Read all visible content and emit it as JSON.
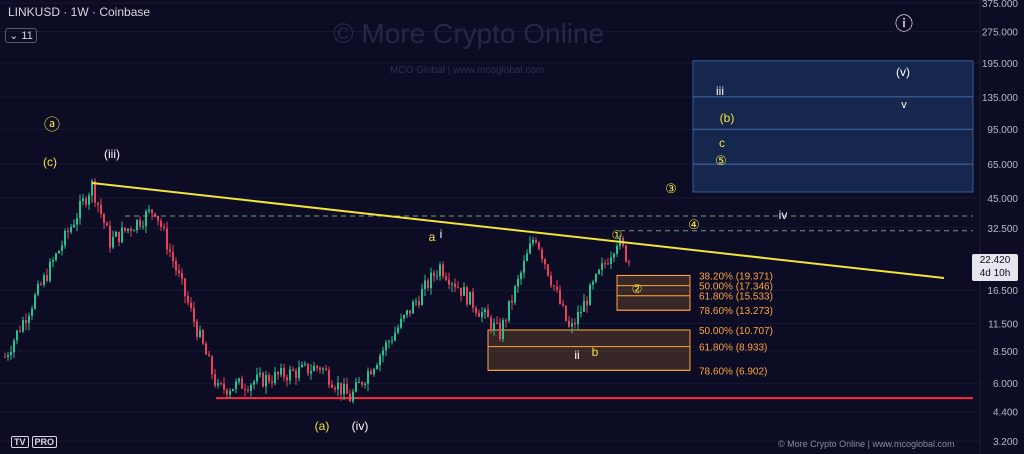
{
  "header": {
    "title": "LINKUSD · 1W · Coinbase",
    "interval_badge": "11"
  },
  "watermark": {
    "main": "© More Crypto Online",
    "sub": "MCO Global   |   www.mcoglobal.com"
  },
  "footer": {
    "credit": "© More Crypto Online  |  www.mcoglobal.com",
    "logo": "TV",
    "logo_badge": "PRO"
  },
  "price_label": {
    "value": "22.420",
    "countdown": "4d 10h"
  },
  "colors": {
    "background": "#0c0c24",
    "up": "#27c08f",
    "down": "#e8415a",
    "trendline": "#f2e43c",
    "support": "#ff2a3c",
    "fib": "#ffa43a",
    "target_zone": "#18305a"
  },
  "chart_data": {
    "type": "candlestick",
    "symbol": "LINKUSD",
    "timeframe": "1W",
    "exchange": "Coinbase",
    "y_scale": "log",
    "y_ticks": [
      "375.000",
      "275.000",
      "195.000",
      "135.000",
      "95.000",
      "65.000",
      "45.000",
      "32.500",
      "22.420",
      "16.500",
      "11.500",
      "8.500",
      "6.000",
      "4.400",
      "3.200"
    ],
    "last_price": 22.42,
    "price_path": [
      {
        "label": "(c) high",
        "price": 52
      },
      {
        "label": "(a) low",
        "price": 5.3
      },
      {
        "label": "(iv) low",
        "price": 5.1
      },
      {
        "label": "a / i high",
        "price": 21.5
      },
      {
        "label": "ii low",
        "price": 10.3
      },
      {
        "label": "peak",
        "price": 30.5
      },
      {
        "label": "b low",
        "price": 10.5
      },
      {
        "label": "(1) high",
        "price": 28.7
      },
      {
        "label": "current",
        "price": 22.42
      }
    ],
    "fib_levels_upper": [
      {
        "label": "38.20% (19.371)",
        "price": 19.371
      },
      {
        "label": "50.00% (17.346)",
        "price": 17.346
      },
      {
        "label": "61.80% (15.533)",
        "price": 15.533
      },
      {
        "label": "78.60% (13.273)",
        "price": 13.273
      }
    ],
    "fib_levels_lower": [
      {
        "label": "50.00% (10.707)",
        "price": 10.707
      },
      {
        "label": "61.80% (8.933)",
        "price": 8.933
      },
      {
        "label": "78.60% (6.902)",
        "price": 6.902
      }
    ],
    "wave_labels": [
      "ⓐ",
      "(c)",
      "(iii)",
      "(a)",
      "(iv)",
      "a",
      "i",
      "ii",
      "b",
      "①",
      "②",
      "③",
      "④",
      "⑤",
      "iii",
      "iv",
      "(v)",
      "v",
      "(b)",
      "c",
      "ⓘ"
    ],
    "support_price": 5.1,
    "resistance_price": 37,
    "target_zone_prices": {
      "top": 200,
      "bottom": 48
    }
  }
}
